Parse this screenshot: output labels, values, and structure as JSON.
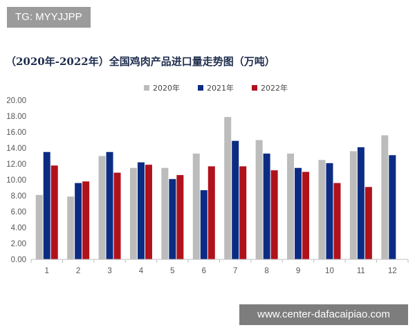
{
  "tag": {
    "text": "TG: MYYJJPP"
  },
  "footer": {
    "url_text": "www.center-dafacaipiao.com"
  },
  "colors": {
    "series_2020": "#bcbcbc",
    "series_2021": "#0c2c84",
    "series_2022": "#b0121b",
    "axis": "#bfbfbf"
  },
  "chart_data": {
    "type": "bar",
    "title": "（2020年-2022年）全国鸡肉产品进口量走势图（万吨）",
    "xlabel": "",
    "ylabel": "",
    "categories": [
      "1",
      "2",
      "3",
      "4",
      "5",
      "6",
      "7",
      "8",
      "9",
      "10",
      "11",
      "12"
    ],
    "ylim": [
      0,
      20
    ],
    "y_ticks": [
      "0.00",
      "2.00",
      "4.00",
      "6.00",
      "8.00",
      "10.00",
      "12.00",
      "14.00",
      "16.00",
      "18.00",
      "20.00"
    ],
    "grid": false,
    "legend_position": "top",
    "series": [
      {
        "name": "2020年",
        "values": [
          8.1,
          7.9,
          13.0,
          11.5,
          11.5,
          13.3,
          17.9,
          15.0,
          13.3,
          12.5,
          13.6,
          15.6
        ]
      },
      {
        "name": "2021年",
        "values": [
          13.5,
          9.6,
          13.5,
          12.2,
          10.1,
          8.7,
          14.9,
          13.3,
          11.5,
          12.1,
          14.1,
          13.1
        ]
      },
      {
        "name": "2022年",
        "values": [
          11.8,
          9.8,
          10.9,
          11.9,
          10.6,
          11.7,
          11.7,
          11.2,
          11.0,
          9.6,
          9.1,
          null
        ]
      }
    ]
  }
}
